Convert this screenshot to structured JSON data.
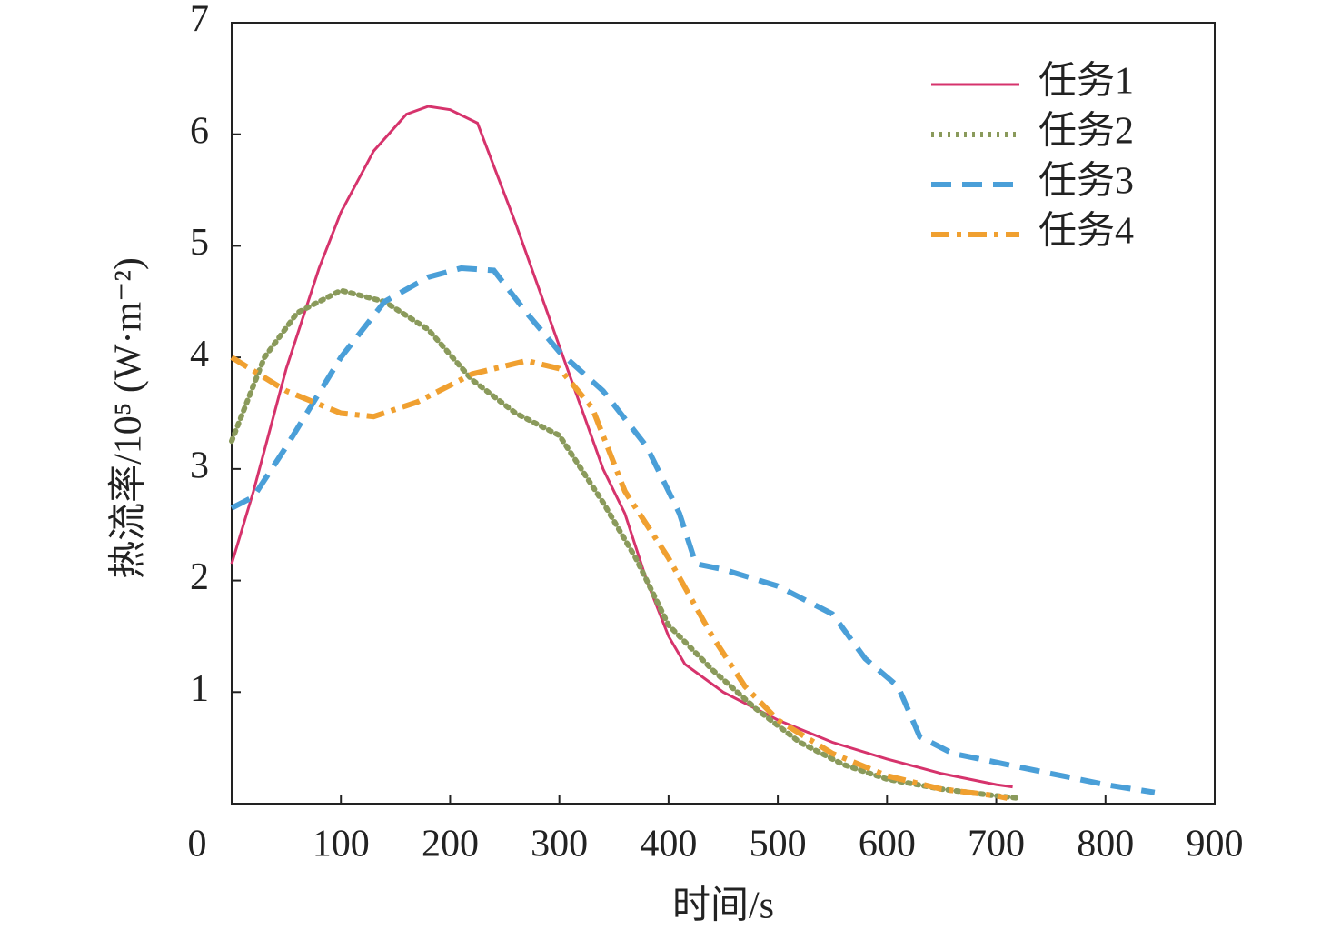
{
  "chart_data": {
    "type": "line",
    "xlabel": "时间/s",
    "ylabel": "热流率/10⁵ (W·m⁻²)",
    "xlim": [
      0,
      900
    ],
    "ylim": [
      0,
      7
    ],
    "xticks": [
      0,
      100,
      200,
      300,
      400,
      500,
      600,
      700,
      800,
      900
    ],
    "yticks": [
      1,
      2,
      3,
      4,
      5,
      6,
      7
    ],
    "legend": "upper right",
    "series": [
      {
        "name": "任务1",
        "color": "#d6336c",
        "dash": "solid",
        "x": [
          0,
          20,
          50,
          80,
          100,
          130,
          160,
          180,
          200,
          225,
          260,
          300,
          340,
          360,
          380,
          400,
          415,
          450,
          500,
          550,
          600,
          650,
          700,
          715
        ],
        "values": [
          2.15,
          2.8,
          3.9,
          4.8,
          5.3,
          5.85,
          6.18,
          6.25,
          6.22,
          6.1,
          5.2,
          4.1,
          3.0,
          2.6,
          2.0,
          1.5,
          1.25,
          1.0,
          0.75,
          0.55,
          0.4,
          0.27,
          0.17,
          0.15
        ]
      },
      {
        "name": "任务2",
        "color": "#8a9a5b",
        "dash": "dotted",
        "x": [
          0,
          30,
          60,
          100,
          140,
          180,
          220,
          260,
          300,
          340,
          370,
          400,
          440,
          480,
          520,
          560,
          600,
          650,
          700,
          720
        ],
        "values": [
          3.25,
          4.0,
          4.4,
          4.6,
          4.5,
          4.25,
          3.8,
          3.5,
          3.3,
          2.7,
          2.2,
          1.6,
          1.2,
          0.85,
          0.55,
          0.35,
          0.22,
          0.13,
          0.07,
          0.05
        ]
      },
      {
        "name": "任务3",
        "color": "#4a9fd8",
        "dash": "dashed",
        "x": [
          0,
          20,
          50,
          100,
          140,
          180,
          210,
          240,
          270,
          300,
          340,
          380,
          410,
          425,
          450,
          500,
          550,
          580,
          610,
          630,
          660,
          700,
          750,
          800,
          845
        ],
        "values": [
          2.65,
          2.75,
          3.2,
          4.0,
          4.5,
          4.72,
          4.8,
          4.78,
          4.4,
          4.05,
          3.7,
          3.2,
          2.6,
          2.15,
          2.1,
          1.95,
          1.7,
          1.3,
          1.05,
          0.6,
          0.45,
          0.37,
          0.27,
          0.17,
          0.1
        ]
      },
      {
        "name": "任务4",
        "color": "#f0a030",
        "dash": "dashdot",
        "x": [
          0,
          50,
          100,
          130,
          170,
          220,
          270,
          300,
          330,
          360,
          400,
          440,
          470,
          500,
          550,
          600,
          650,
          700,
          710
        ],
        "values": [
          4.0,
          3.7,
          3.5,
          3.47,
          3.6,
          3.85,
          3.97,
          3.9,
          3.55,
          2.8,
          2.2,
          1.5,
          1.05,
          0.75,
          0.45,
          0.25,
          0.13,
          0.07,
          0.05
        ]
      }
    ]
  }
}
